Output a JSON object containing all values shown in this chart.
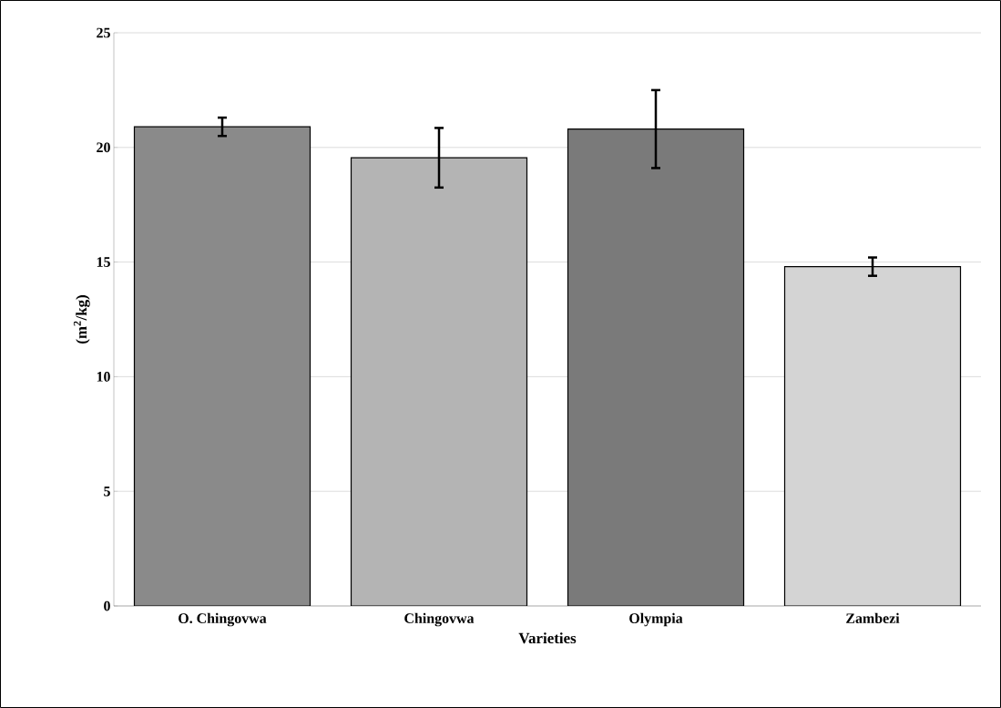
{
  "chart_data": {
    "type": "bar",
    "xlabel": "Varieties",
    "ylabel": "(m$^{2}$/kg)",
    "categories": [
      "O. Chingovwa",
      "Chingovwa",
      "Olympia",
      "Zambezi"
    ],
    "values": [
      20.9,
      19.55,
      20.8,
      14.8
    ],
    "errors": [
      0.4,
      1.3,
      1.7,
      0.4
    ],
    "colors": [
      "#8a8a8a",
      "#b4b4b4",
      "#7a7a7a",
      "#d4d4d4"
    ],
    "ylim": [
      0,
      25
    ],
    "yticks": [
      0,
      5,
      10,
      15,
      20,
      25
    ],
    "grid": "y"
  }
}
